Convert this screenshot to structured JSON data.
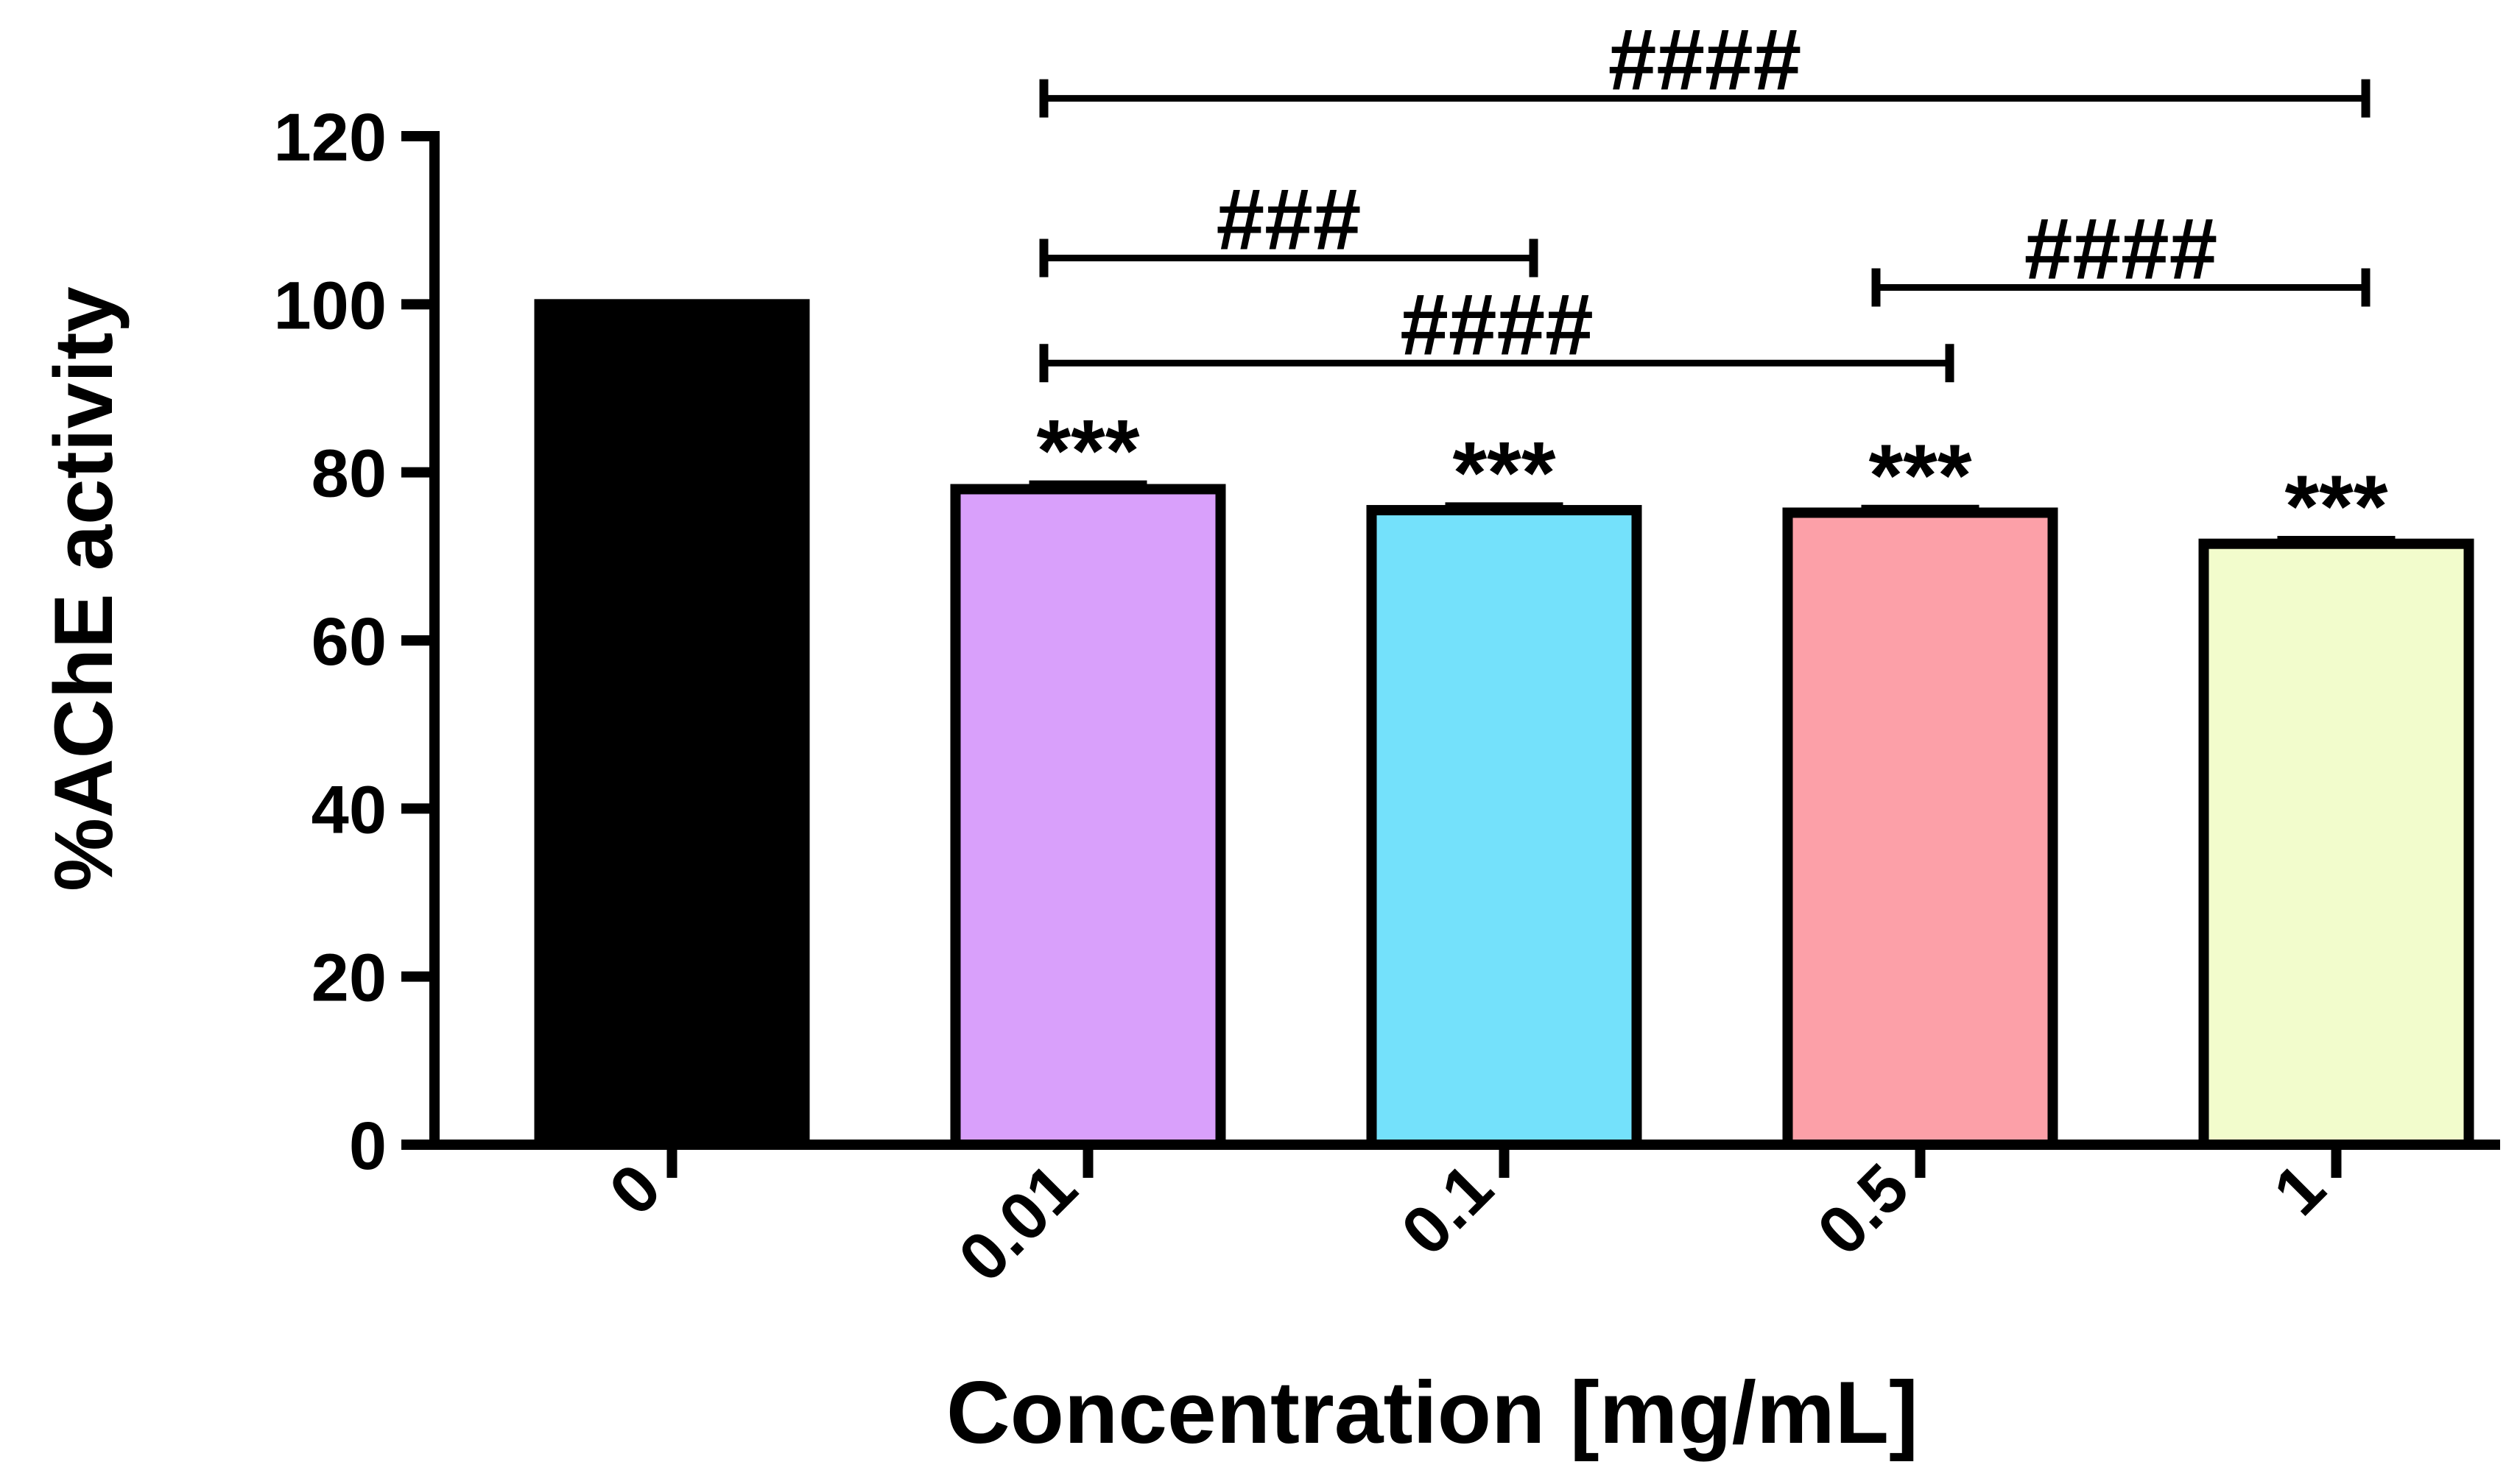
{
  "chart_data": {
    "type": "bar",
    "title": "",
    "xlabel": "Concentration [mg/mL]",
    "ylabel": "%AChE activity",
    "categories": [
      "0",
      "0.01",
      "0.1",
      "0.5",
      "1"
    ],
    "values": [
      100,
      78,
      75.5,
      75.2,
      71.5
    ],
    "errors": [
      0,
      0.6,
      0.5,
      0.5,
      0.5
    ],
    "colors": [
      "#000000",
      "#d9a0fb",
      "#74e1fb",
      "#fca0a8",
      "#f2fccc"
    ],
    "ylim": [
      0,
      120
    ],
    "yticks": [
      "0",
      "20",
      "40",
      "60",
      "80",
      "100",
      "120"
    ],
    "bar_annotations": [
      "",
      "***",
      "***",
      "***",
      "***"
    ],
    "comparisons": [
      {
        "from": 1,
        "to": 4,
        "label": "####",
        "y": 124.5
      },
      {
        "from": 1,
        "to": 2,
        "label": "###",
        "y": 105.5
      },
      {
        "from": 3,
        "to": 4,
        "label": "####",
        "y": 102
      },
      {
        "from": 1,
        "to": 3,
        "label": "####",
        "y": 93
      }
    ]
  }
}
